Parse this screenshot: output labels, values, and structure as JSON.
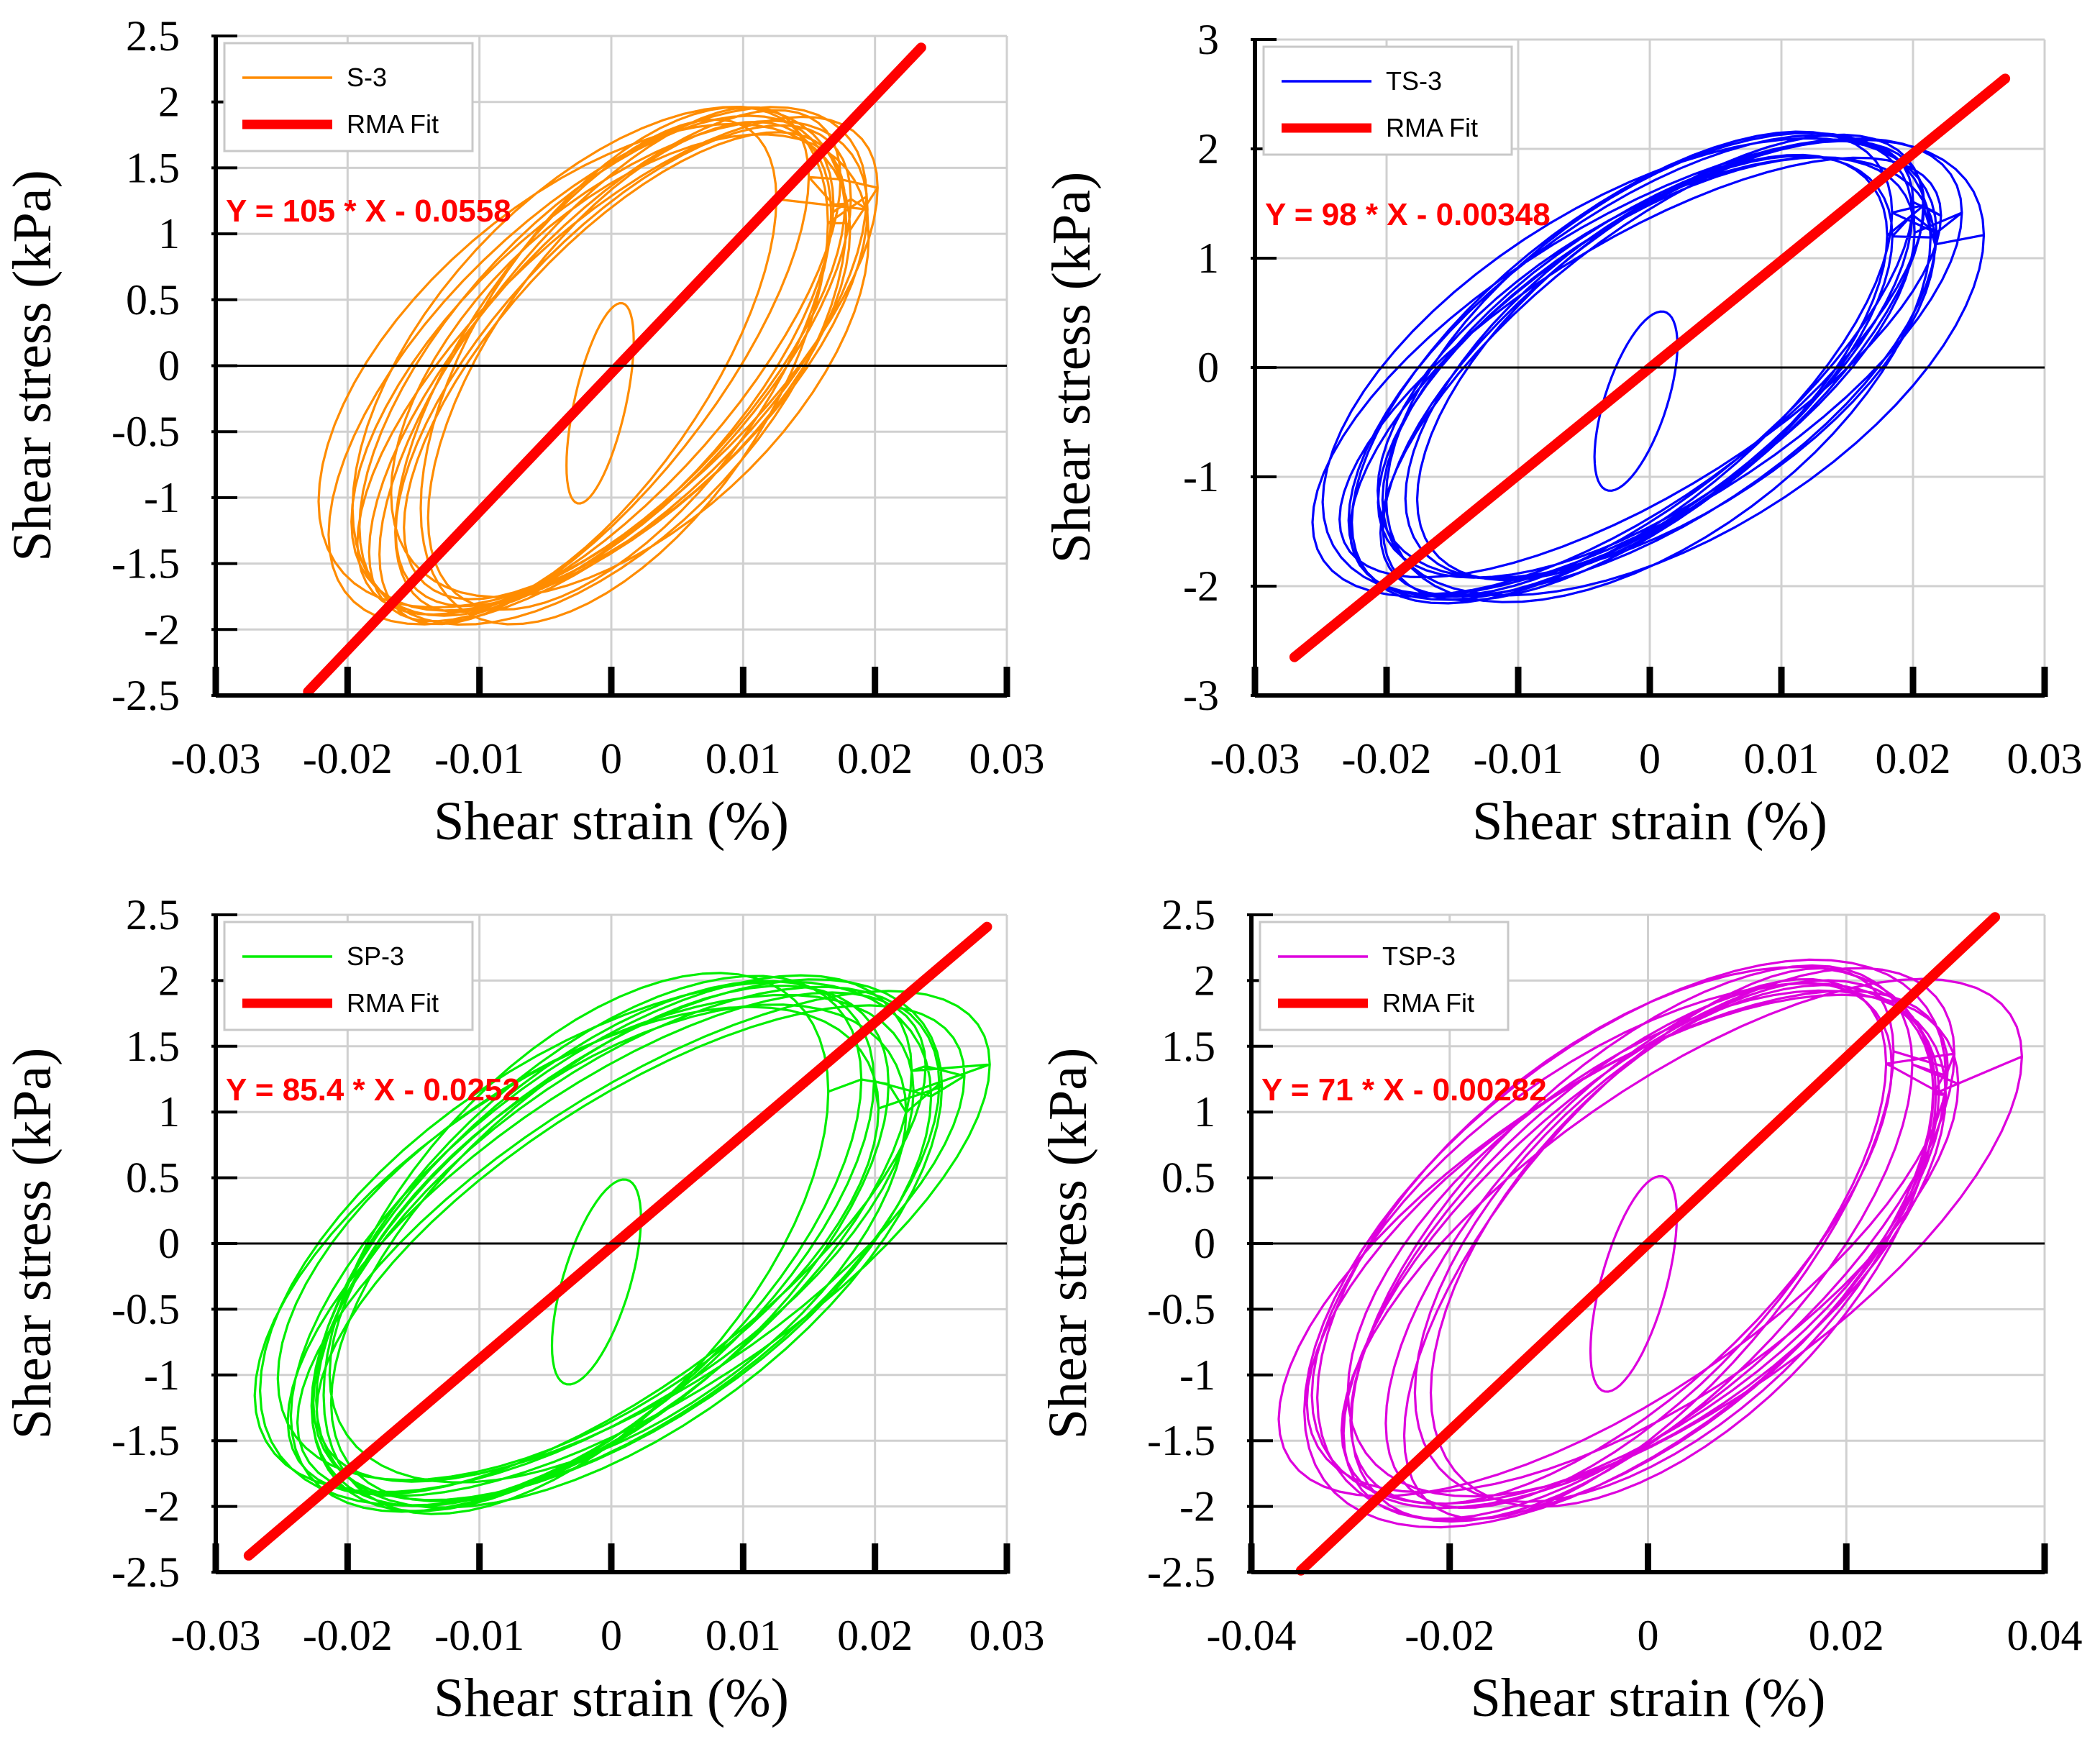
{
  "chart_data": [
    {
      "type": "line",
      "panel": "top-left",
      "xlabel": "Shear strain (%)",
      "ylabel": "Shear stress (kPa)",
      "xlim": [
        -0.03,
        0.03
      ],
      "ylim": [
        -2.5,
        2.5
      ],
      "xticks": [
        -0.03,
        -0.02,
        -0.01,
        0,
        0.01,
        0.02,
        0.03
      ],
      "xtick_labels": [
        "-0.03",
        "-0.02",
        "-0.01",
        "0",
        "0.01",
        "0.02",
        "0.03"
      ],
      "yticks": [
        2.5,
        2,
        1.5,
        1,
        0.5,
        0,
        -0.5,
        -1,
        -1.5,
        -2,
        -2.5
      ],
      "ytick_labels": [
        "2.5",
        "2",
        "1.5",
        "1",
        "0.5",
        "0",
        "-0.5",
        "-1",
        "-1.5",
        "-2",
        "-2.5"
      ],
      "grid": true,
      "legend_position": "top-left",
      "color": "#ff8c00",
      "fit_color": "#ff0000",
      "series": [
        {
          "name": "S-3",
          "kind": "hysteresis",
          "amplitude": 0.017,
          "peak_stress": 1.9
        },
        {
          "name": "RMA Fit",
          "kind": "line",
          "slope": 105,
          "intercept": -0.0558,
          "x_range": [
            -0.023,
            0.0235
          ]
        }
      ],
      "annotation": "Y = 105 * X - 0.0558"
    },
    {
      "type": "line",
      "panel": "top-right",
      "xlabel": "Shear strain (%)",
      "ylabel": "Shear stress (kPa)",
      "xlim": [
        -0.03,
        0.03
      ],
      "ylim": [
        -3,
        3
      ],
      "xticks": [
        -0.03,
        -0.02,
        -0.01,
        0,
        0.01,
        0.02,
        0.03
      ],
      "xtick_labels": [
        "-0.03",
        "-0.02",
        "-0.01",
        "0",
        "0.01",
        "0.02",
        "0.03"
      ],
      "yticks": [
        3,
        2,
        1,
        0,
        -1,
        -2,
        -3
      ],
      "ytick_labels": [
        "3",
        "2",
        "1",
        "0",
        "-1",
        "-2",
        "-3"
      ],
      "grid": true,
      "legend_position": "top-left",
      "color": "#0000ff",
      "fit_color": "#ff0000",
      "series": [
        {
          "name": "TS-3",
          "kind": "hysteresis",
          "amplitude": 0.021,
          "peak_stress": 2.05
        },
        {
          "name": "RMA Fit",
          "kind": "line",
          "slope": 98,
          "intercept": -0.00348,
          "x_range": [
            -0.027,
            0.027
          ]
        }
      ],
      "annotation": "Y = 98 * X - 0.00348"
    },
    {
      "type": "line",
      "panel": "bottom-left",
      "xlabel": "Shear strain (%)",
      "ylabel": "Shear stress (kPa)",
      "xlim": [
        -0.03,
        0.03
      ],
      "ylim": [
        -2.5,
        2.5
      ],
      "xticks": [
        -0.03,
        -0.02,
        -0.01,
        0,
        0.01,
        0.02,
        0.03
      ],
      "xtick_labels": [
        "-0.03",
        "-0.02",
        "-0.01",
        "0",
        "0.01",
        "0.02",
        "0.03"
      ],
      "yticks": [
        2.5,
        2,
        1.5,
        1,
        0.5,
        0,
        -0.5,
        -1,
        -1.5,
        -2,
        -2.5
      ],
      "ytick_labels": [
        "2.5",
        "2",
        "1.5",
        "1",
        "0.5",
        "0",
        "-0.5",
        "-1",
        "-1.5",
        "-2",
        "-2.5"
      ],
      "grid": true,
      "legend_position": "top-left",
      "color": "#00ee00",
      "fit_color": "#ff0000",
      "series": [
        {
          "name": "SP-3",
          "kind": "hysteresis",
          "amplitude": 0.0225,
          "peak_stress": 1.95
        },
        {
          "name": "RMA Fit",
          "kind": "line",
          "slope": 85.4,
          "intercept": -0.0252,
          "x_range": [
            -0.0275,
            0.0285
          ]
        }
      ],
      "annotation": "Y = 85.4 * X - 0.0252"
    },
    {
      "type": "line",
      "panel": "bottom-right",
      "xlabel": "Shear strain (%)",
      "ylabel": "Shear stress (kPa)",
      "xlim": [
        -0.04,
        0.04
      ],
      "ylim": [
        -2.5,
        2.5
      ],
      "xticks": [
        -0.04,
        -0.02,
        0,
        0.02,
        0.04
      ],
      "xtick_labels": [
        "-0.04",
        "-0.02",
        "0",
        "0.02",
        "0.04"
      ],
      "yticks": [
        2.5,
        2,
        1.5,
        1,
        0.5,
        0,
        -0.5,
        -1,
        -1.5,
        -2,
        -2.5
      ],
      "ytick_labels": [
        "2.5",
        "2",
        "1.5",
        "1",
        "0.5",
        "0",
        "-0.5",
        "-1",
        "-1.5",
        "-2",
        "-2.5"
      ],
      "grid": true,
      "legend_position": "top-left",
      "color": "#dd00dd",
      "fit_color": "#ff0000",
      "series": [
        {
          "name": "TSP-3",
          "kind": "hysteresis",
          "amplitude": 0.029,
          "peak_stress": 2.05
        },
        {
          "name": "RMA Fit",
          "kind": "line",
          "slope": 71,
          "intercept": -0.00282,
          "x_range": [
            -0.035,
            0.035
          ]
        }
      ],
      "annotation": "Y = 71 * X - 0.00282"
    }
  ]
}
